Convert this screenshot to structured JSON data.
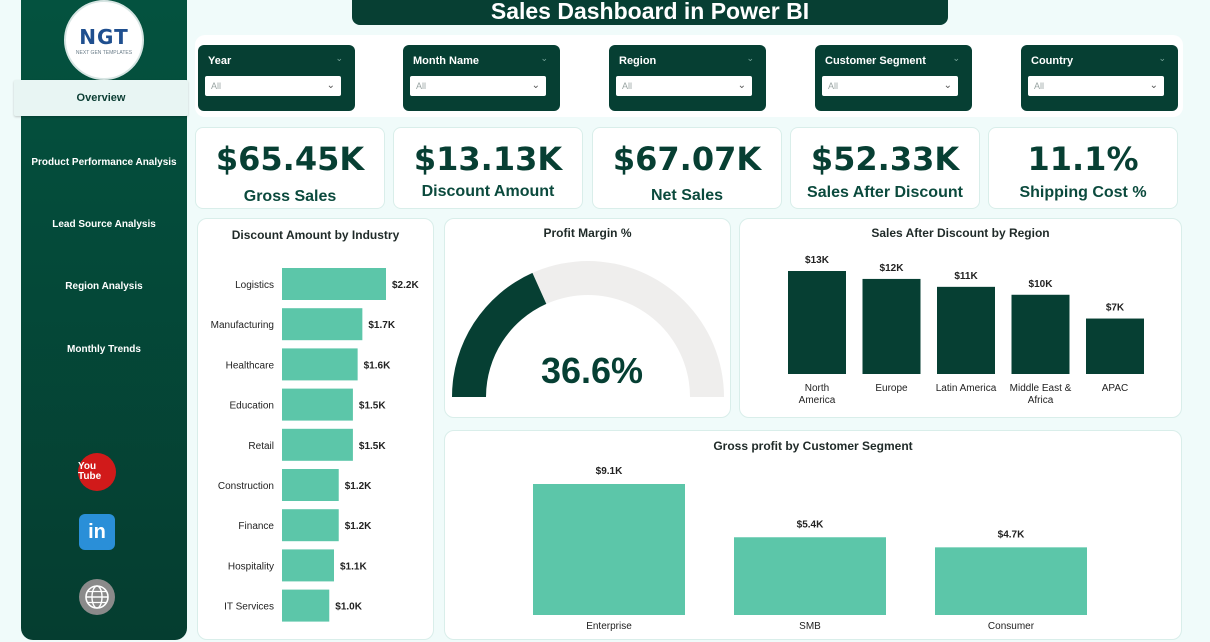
{
  "app_title": "Sales Dashboard in Power BI",
  "logo": {
    "text": "NGT",
    "sub": "NEXT GEN TEMPLATES"
  },
  "nav": [
    {
      "label": "Overview"
    },
    {
      "label": "Product Performance Analysis"
    },
    {
      "label": "Lead Source Analysis"
    },
    {
      "label": "Region Analysis"
    },
    {
      "label": "Monthly Trends"
    }
  ],
  "social": {
    "youtube": "You Tube",
    "linkedin": "in",
    "web_icon": "globe-icon"
  },
  "filters": [
    {
      "label": "Year",
      "value": "All"
    },
    {
      "label": "Month Name",
      "value": "All"
    },
    {
      "label": "Region",
      "value": "All"
    },
    {
      "label": "Customer Segment",
      "value": "All"
    },
    {
      "label": "Country",
      "value": "All"
    }
  ],
  "kpis": [
    {
      "value": "$65.45K",
      "label": "Gross Sales"
    },
    {
      "value": "$13.13K",
      "label": "Discount Amount"
    },
    {
      "value": "$67.07K",
      "label": "Net Sales"
    },
    {
      "value": "$52.33K",
      "label": "Sales After Discount"
    },
    {
      "value": "11.1%",
      "label": "Shipping Cost %"
    }
  ],
  "colors": {
    "accent": "#5cc6a9",
    "dark": "#063f33",
    "gauge_bg": "#efeeed"
  },
  "chart_data": [
    {
      "type": "bar",
      "orientation": "horizontal",
      "title": "Discount Amount by Industry",
      "categories": [
        "Logistics",
        "Manufacturing",
        "Healthcare",
        "Education",
        "Retail",
        "Construction",
        "Finance",
        "Hospitality",
        "IT Services"
      ],
      "values": [
        2.2,
        1.7,
        1.6,
        1.5,
        1.5,
        1.2,
        1.2,
        1.1,
        1.0
      ],
      "data_labels": [
        "$2.2K",
        "$1.7K",
        "$1.6K",
        "$1.5K",
        "$1.5K",
        "$1.2K",
        "$1.2K",
        "$1.1K",
        "$1.0K"
      ],
      "grid": false
    },
    {
      "type": "gauge",
      "title": "Profit Margin %",
      "value": 36.6,
      "display": "36.6%",
      "range": [
        0,
        100
      ]
    },
    {
      "type": "bar",
      "title": "Sales After Discount by Region",
      "categories": [
        "North America",
        "Europe",
        "Latin America",
        "Middle East & Africa",
        "APAC"
      ],
      "values": [
        13,
        12,
        11,
        10,
        7
      ],
      "data_labels": [
        "$13K",
        "$12K",
        "$11K",
        "$10K",
        "$7K"
      ],
      "grid": false
    },
    {
      "type": "bar",
      "title": "Gross profit by Customer Segment",
      "categories": [
        "Enterprise",
        "SMB",
        "Consumer"
      ],
      "values": [
        9.1,
        5.4,
        4.7
      ],
      "data_labels": [
        "$9.1K",
        "$5.4K",
        "$4.7K"
      ],
      "grid": false
    }
  ]
}
